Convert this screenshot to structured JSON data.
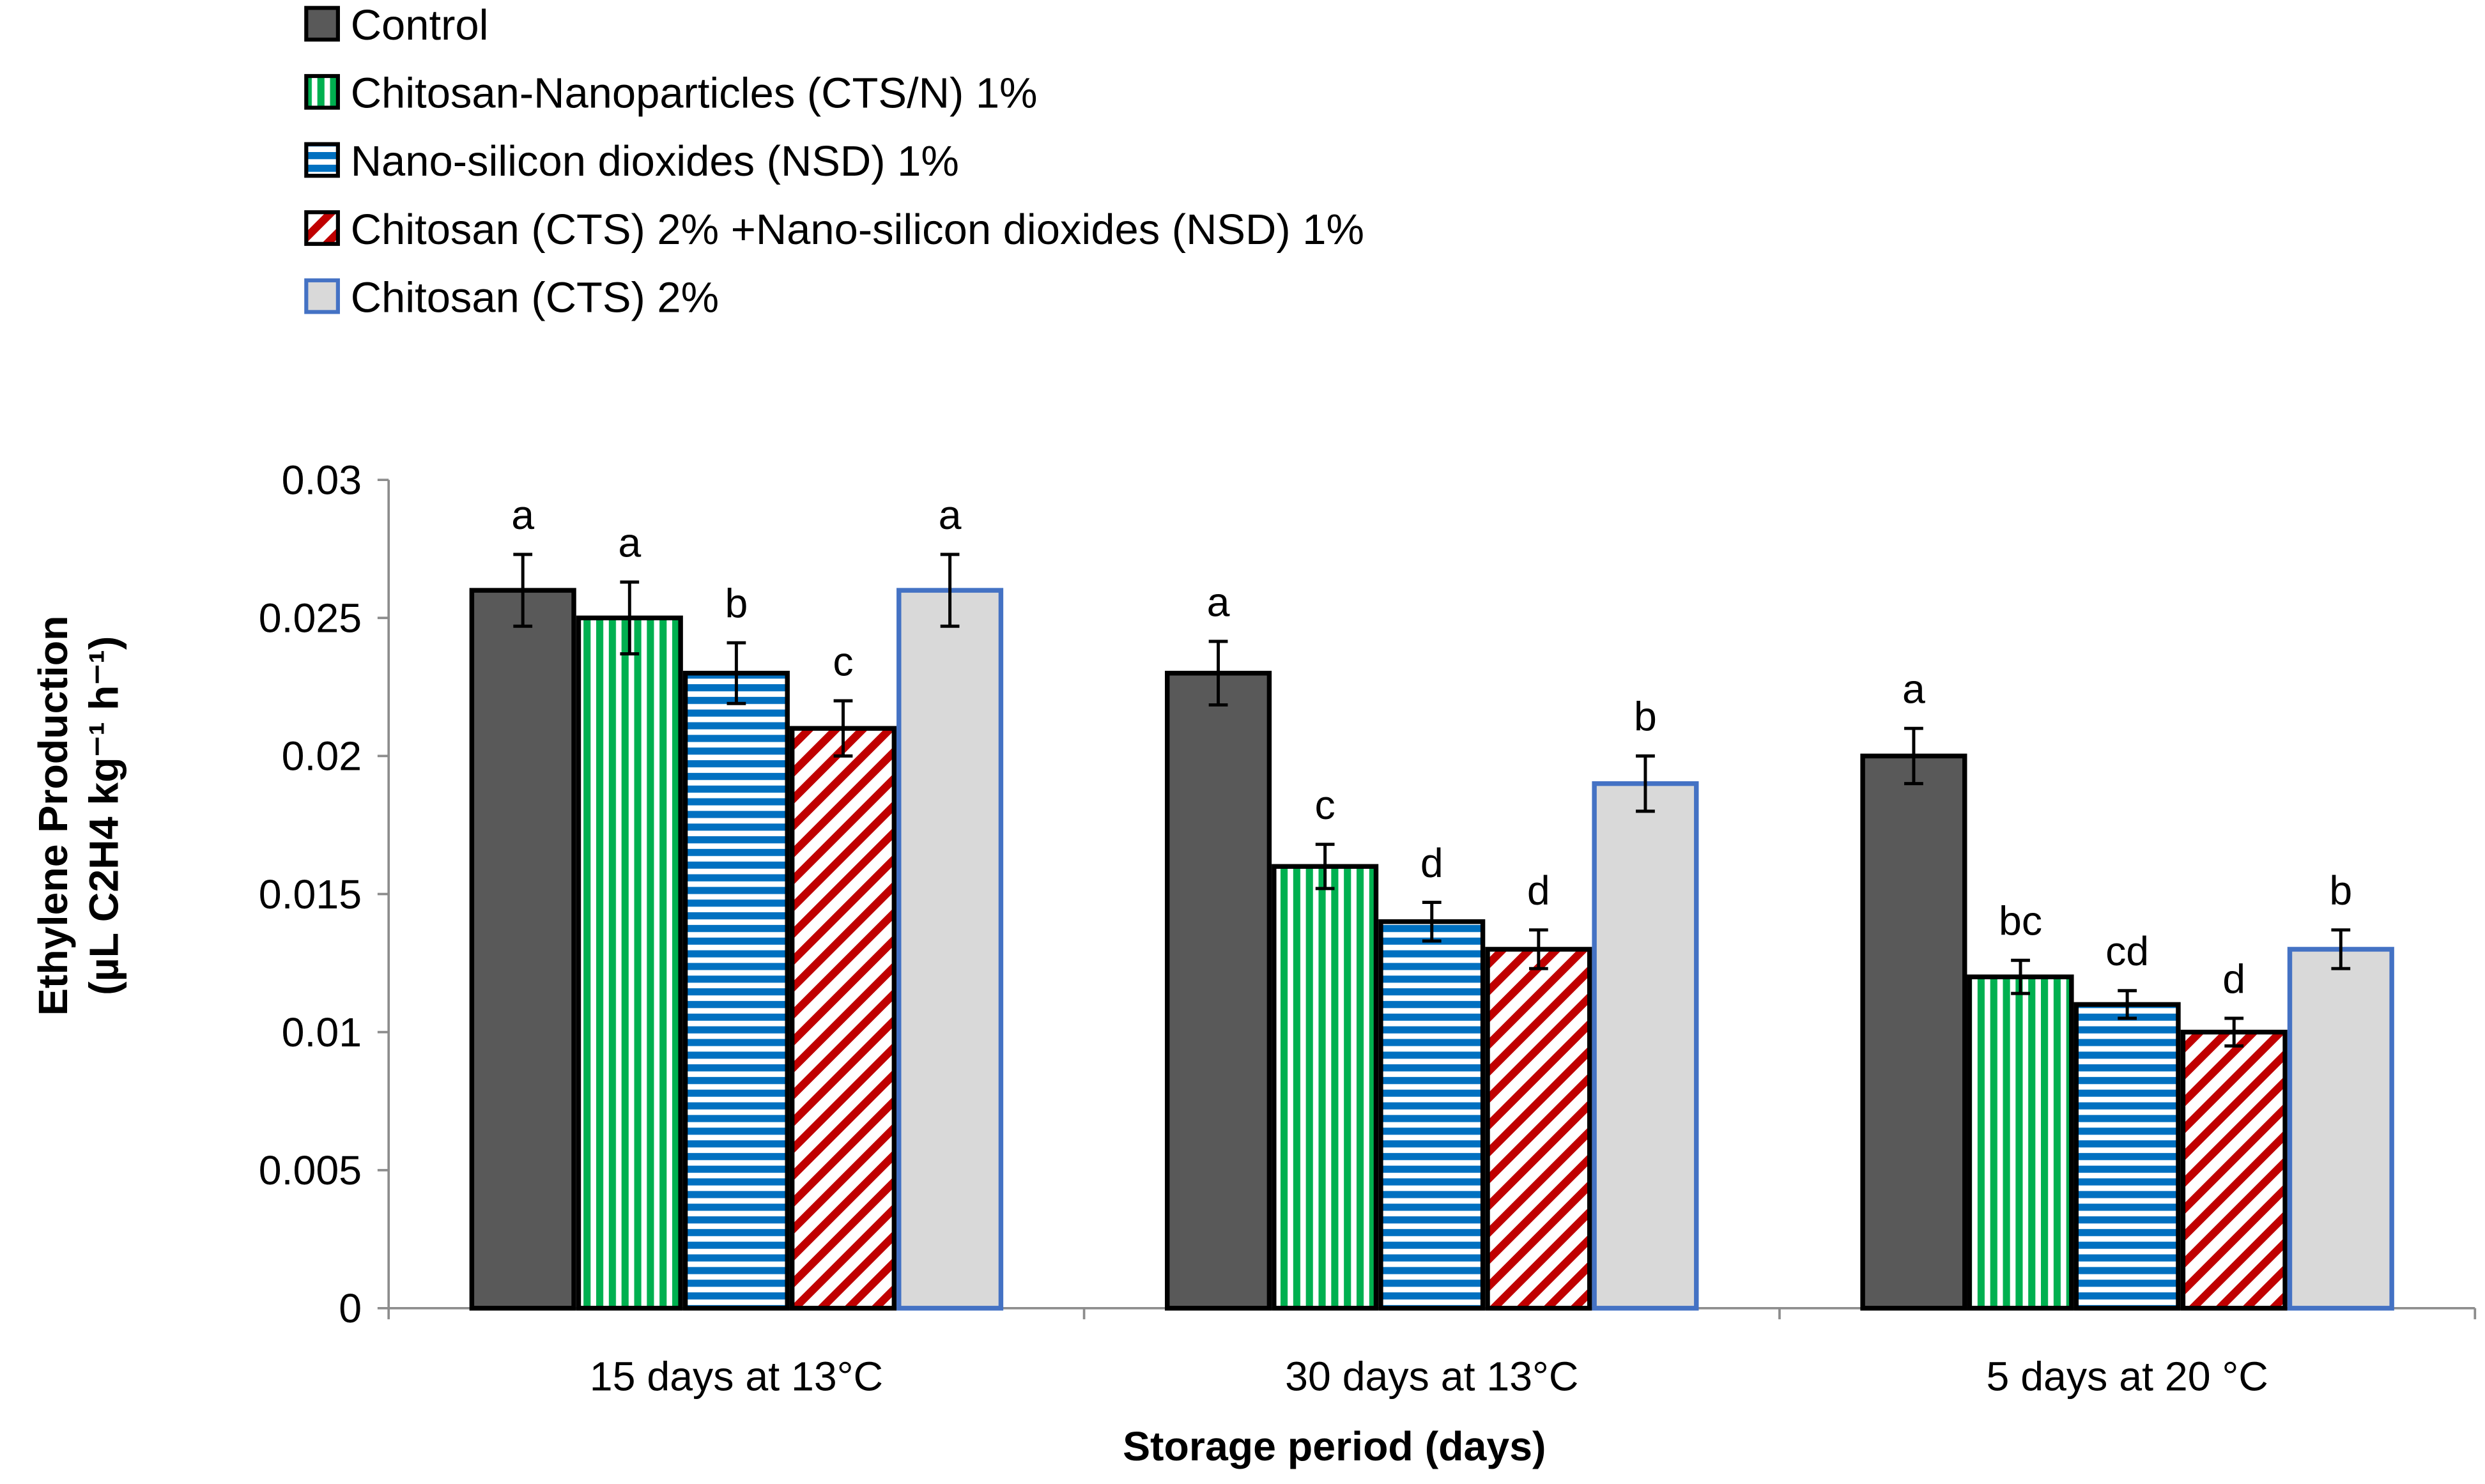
{
  "chart_data": {
    "type": "bar",
    "title": "",
    "xlabel": "Storage period (days)",
    "ylabel_line1": "Ethylene Production",
    "ylabel_line2": "(µL C2H4 kg⁻¹ h⁻¹)",
    "ylim": [
      0,
      0.03
    ],
    "yticks": [
      "0",
      "0.005",
      "0.01",
      "0.015",
      "0.02",
      "0.025",
      "0.03"
    ],
    "ytick_values": [
      0,
      0.005,
      0.01,
      0.015,
      0.02,
      0.025,
      0.03
    ],
    "categories": [
      "15 days at 13°C",
      "30 days at 13°C",
      "5 days at 20 °C"
    ],
    "legend_position": "top-left",
    "series": [
      {
        "name": "Control",
        "values": [
          0.026,
          0.023,
          0.02
        ],
        "errors": [
          0.0013,
          0.00115,
          0.001
        ],
        "letters": [
          "a",
          "a",
          "a"
        ],
        "fill": "#595959",
        "stroke": "#000000",
        "pattern": "solid"
      },
      {
        "name": "Chitosan-Nanoparticles (CTS/N) 1%",
        "values": [
          0.025,
          0.016,
          0.012
        ],
        "errors": [
          0.0013,
          0.0008,
          0.0006
        ],
        "letters": [
          "a",
          "c",
          "bc"
        ],
        "fill": "#00b050",
        "stroke": "#000000",
        "pattern": "vertical"
      },
      {
        "name": "Nano-silicon dioxides  (NSD) 1%",
        "values": [
          0.023,
          0.014,
          0.011
        ],
        "errors": [
          0.0011,
          0.0007,
          0.0005
        ],
        "letters": [
          "b",
          "d",
          "cd"
        ],
        "fill": "#0070c0",
        "stroke": "#000000",
        "pattern": "horizontal"
      },
      {
        "name": "Chitosan (CTS) 2% +Nano-silicon dioxides  (NSD) 1%",
        "values": [
          0.021,
          0.013,
          0.01
        ],
        "errors": [
          0.001,
          0.0007,
          0.0005
        ],
        "letters": [
          "c",
          "d",
          "d"
        ],
        "fill": "#c00000",
        "stroke": "#000000",
        "pattern": "diagonal"
      },
      {
        "name": "Chitosan (CTS) 2%",
        "values": [
          0.026,
          0.019,
          0.013
        ],
        "errors": [
          0.0013,
          0.001,
          0.0007
        ],
        "letters": [
          "a",
          "b",
          "b"
        ],
        "fill": "#d9d9d9",
        "stroke": "#4472c4",
        "pattern": "solid"
      }
    ]
  }
}
